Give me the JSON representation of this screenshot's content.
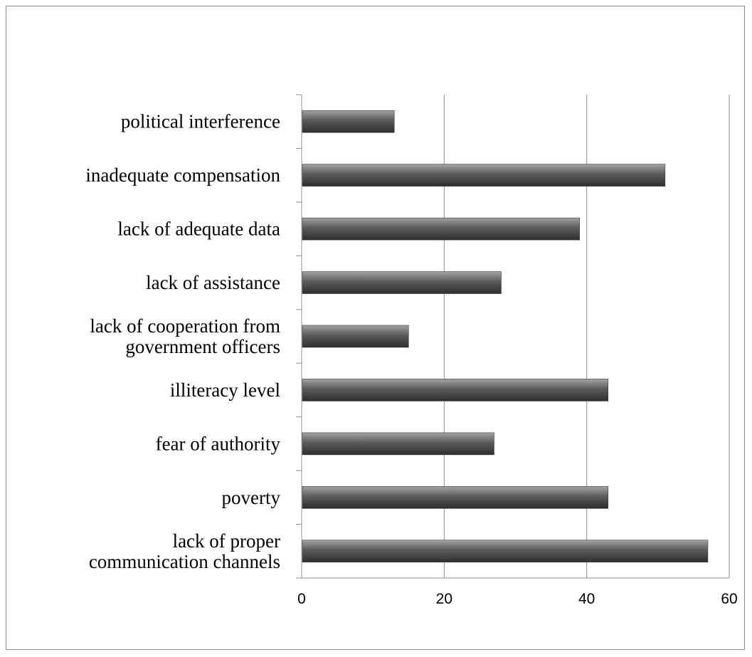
{
  "chart_data": {
    "type": "bar",
    "orientation": "horizontal",
    "title": "",
    "xlabel": "",
    "ylabel": "",
    "categories": [
      [
        "lack of proper",
        "communication channels"
      ],
      [
        "poverty"
      ],
      [
        "fear of authority"
      ],
      [
        "illiteracy level"
      ],
      [
        "lack  of cooperation from",
        "government officers"
      ],
      [
        "lack of assistance "
      ],
      [
        "lack of adequate data"
      ],
      [
        "inadequate compensation"
      ],
      [
        "political interference"
      ]
    ],
    "values": [
      57,
      43,
      27,
      43,
      15,
      28,
      39,
      51,
      13
    ],
    "xlim": [
      0,
      60
    ],
    "x_ticks": [
      "0",
      "20",
      "40",
      "60"
    ],
    "grid": "vertical major gridlines",
    "legend": "none",
    "colors": {
      "bar_top": "#a3a3a3",
      "bar_mid": "#5b5b5b",
      "bar_bottom": "#2e2e2e",
      "grid": "#8c8c8c",
      "axis": "#8c8c8c"
    }
  }
}
